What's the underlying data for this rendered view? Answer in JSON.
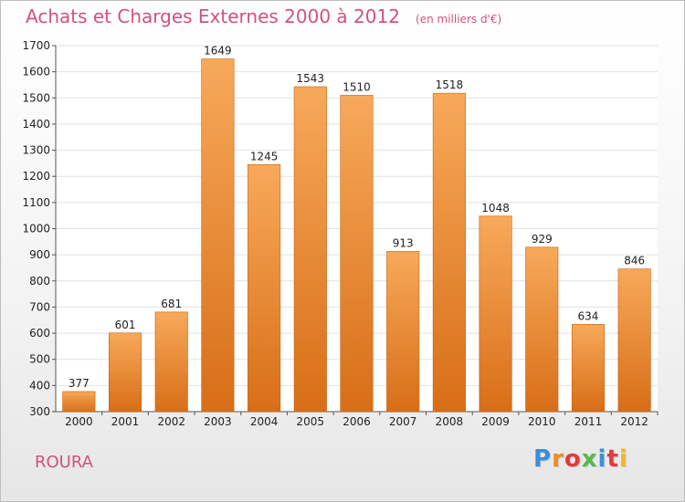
{
  "header": {
    "title": "Achats et Charges Externes 2000 à 2012",
    "subtitle": "(en milliers d'€)"
  },
  "entity_name": "ROURA",
  "logo": {
    "text": "Proxiti",
    "letters": [
      "P",
      "r",
      "o",
      "x",
      "i",
      "t",
      "i"
    ],
    "letter_colors": [
      "#3a8fd6",
      "#f28c1e",
      "#e23b3b",
      "#58b947",
      "#3a8fd6",
      "#e23b3b",
      "#f2b81e"
    ]
  },
  "colors": {
    "bar_top": "#f7a95a",
    "bar_bottom": "#d86e17",
    "grid": "#e2e2e2",
    "title": "#d0527f"
  },
  "chart_data": {
    "type": "bar",
    "categories": [
      "2000",
      "2001",
      "2002",
      "2003",
      "2004",
      "2005",
      "2006",
      "2007",
      "2008",
      "2009",
      "2010",
      "2011",
      "2012"
    ],
    "values": [
      377,
      601,
      681,
      1649,
      1245,
      1543,
      1510,
      913,
      1518,
      1048,
      929,
      634,
      846
    ],
    "data_labels": [
      "377",
      "601",
      "681",
      "1649",
      "1245",
      "1543",
      "1510",
      "913",
      "1518",
      "1048",
      "929",
      "634",
      "846"
    ],
    "ylim": [
      300,
      1700
    ],
    "yticks": [
      300,
      400,
      500,
      600,
      700,
      800,
      900,
      1000,
      1100,
      1200,
      1300,
      1400,
      1500,
      1600,
      1700
    ],
    "ytick_labels": [
      "300",
      "400",
      "500",
      "600",
      "700",
      "800",
      "900",
      "1000",
      "1100",
      "1200",
      "1300",
      "1400",
      "1500",
      "1600",
      "1700"
    ],
    "grid": true,
    "legend": "none"
  }
}
